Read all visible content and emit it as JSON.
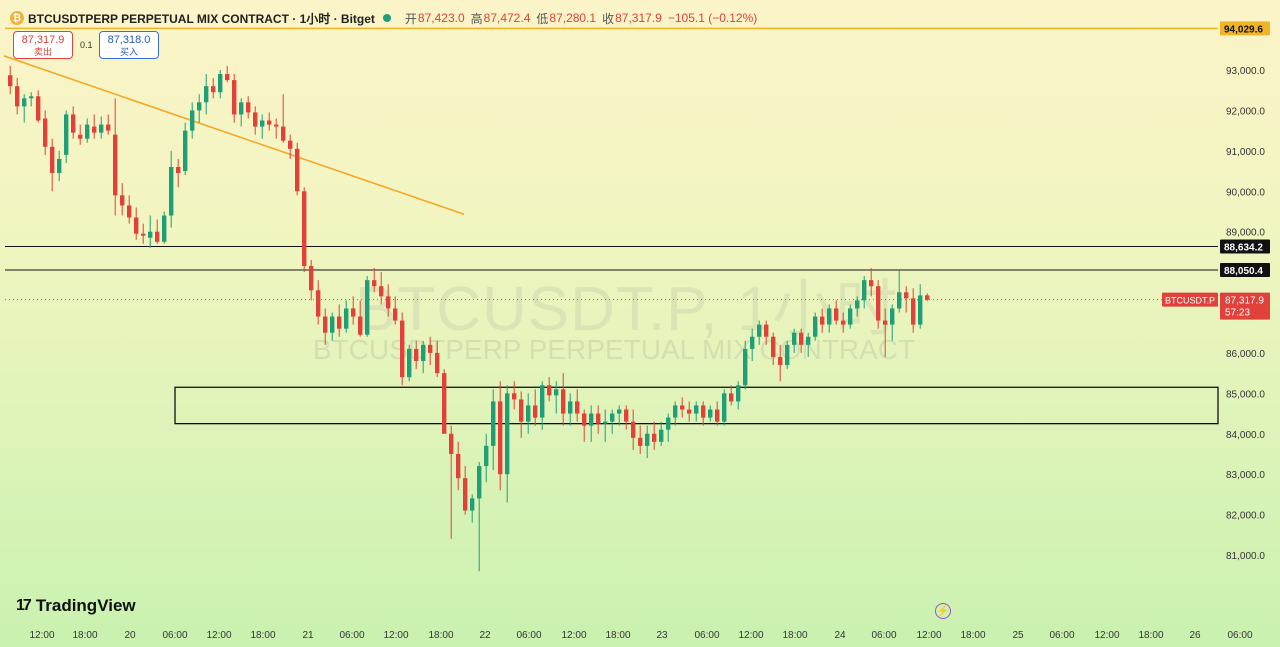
{
  "header": {
    "title": "BTCUSDTPERP PERPETUAL MIX CONTRACT · 1小时 · Bitget",
    "open_label": "开",
    "open": "87,423.0",
    "high_label": "高",
    "high": "87,472.4",
    "low_label": "低",
    "low": "87,280.1",
    "close_label": "收",
    "close": "87,317.9",
    "change": "−105.1 (−0.12%)"
  },
  "trade": {
    "sell_price": "87,317.9",
    "sell_label": "卖出",
    "spread": "0.1",
    "buy_price": "87,318.0",
    "buy_label": "买入"
  },
  "watermark": {
    "big": "BTCUSDT.P, 1小时",
    "small": "BTCUSDTPERP PERPETUAL MIX CONTRACT"
  },
  "branding": {
    "name": "TradingView"
  },
  "colors": {
    "up": "#1f9e78",
    "down": "#e0413a",
    "trendline": "#f5a623",
    "top_line": "#f0b429"
  },
  "chart_data": {
    "type": "candlestick",
    "symbol": "BTCUSDT.P",
    "interval": "1小时",
    "y_ticks": [
      93000,
      92000,
      91000,
      90000,
      89000,
      88000,
      87000,
      86000,
      85000,
      84000,
      83000,
      82000,
      81000
    ],
    "y_tick_labels": [
      "93,000.0",
      "92,000.0",
      "91,000.0",
      "90,000.0",
      "89,000.0",
      "88,000.0",
      "87,000.0",
      "86,000.0",
      "85,000.0",
      "84,000.0",
      "83,000.0",
      "82,000.0",
      "81,000.0"
    ],
    "ylim": [
      80000,
      94800
    ],
    "x_tick_labels": [
      "12:00",
      "18:00",
      "20",
      "06:00",
      "12:00",
      "18:00",
      "21",
      "06:00",
      "12:00",
      "18:00",
      "22",
      "06:00",
      "12:00",
      "18:00",
      "23",
      "06:00",
      "12:00",
      "18:00",
      "24",
      "06:00",
      "12:00",
      "18:00",
      "25",
      "06:00",
      "12:00",
      "18:00",
      "26",
      "06:00"
    ],
    "horizontal_levels": [
      {
        "price": 94029.6,
        "label": "94,029.6"
      },
      {
        "price": 88634.2,
        "label": "88,634.2"
      },
      {
        "price": 88050.4,
        "label": "88,050.4"
      }
    ],
    "last_price": {
      "price": 87317.9,
      "label": "87,317.9",
      "symbol_tag": "BTCUSDT.P",
      "countdown": "57:23"
    },
    "rectangle_zone": {
      "top": 85150,
      "bottom": 84250
    },
    "trendline": {
      "from": {
        "bar": 0,
        "price": 93350
      },
      "to": {
        "bar": 65,
        "price": 89430
      }
    },
    "candles": [
      [
        92870,
        93100,
        92400,
        92600
      ],
      [
        92600,
        92800,
        91900,
        92100
      ],
      [
        92100,
        92400,
        91700,
        92300
      ],
      [
        92300,
        92450,
        92100,
        92350
      ],
      [
        92350,
        92500,
        91700,
        91750
      ],
      [
        91800,
        92000,
        90900,
        91100
      ],
      [
        91100,
        91300,
        90000,
        90450
      ],
      [
        90450,
        91000,
        90250,
        90800
      ],
      [
        90900,
        92000,
        90700,
        91900
      ],
      [
        91900,
        92100,
        91300,
        91450
      ],
      [
        91400,
        91650,
        91150,
        91300
      ],
      [
        91300,
        91800,
        91200,
        91650
      ],
      [
        91600,
        91900,
        91300,
        91450
      ],
      [
        91450,
        91850,
        91300,
        91650
      ],
      [
        91650,
        91900,
        91400,
        91500
      ],
      [
        91400,
        92300,
        89400,
        89900
      ],
      [
        89900,
        90200,
        89400,
        89650
      ],
      [
        89650,
        89900,
        89200,
        89350
      ],
      [
        89350,
        89600,
        88800,
        88950
      ],
      [
        88950,
        89200,
        88700,
        88900
      ],
      [
        88850,
        89400,
        88600,
        89000
      ],
      [
        89000,
        89300,
        88700,
        88750
      ],
      [
        88750,
        89500,
        88700,
        89400
      ],
      [
        89400,
        91000,
        89100,
        90600
      ],
      [
        90600,
        90800,
        90100,
        90450
      ],
      [
        90500,
        91700,
        90400,
        91500
      ],
      [
        91500,
        92200,
        91300,
        92000
      ],
      [
        92000,
        92400,
        91700,
        92200
      ],
      [
        92200,
        92900,
        91900,
        92600
      ],
      [
        92600,
        92800,
        92300,
        92450
      ],
      [
        92450,
        93000,
        92300,
        92900
      ],
      [
        92900,
        93100,
        92700,
        92750
      ],
      [
        92750,
        92900,
        91700,
        91900
      ],
      [
        91900,
        92300,
        91600,
        92200
      ],
      [
        92200,
        92350,
        91800,
        91950
      ],
      [
        91950,
        92100,
        91400,
        91600
      ],
      [
        91600,
        91900,
        91300,
        91750
      ],
      [
        91750,
        91950,
        91500,
        91650
      ],
      [
        91650,
        91800,
        91300,
        91600
      ],
      [
        91600,
        92400,
        91200,
        91250
      ],
      [
        91250,
        91400,
        90800,
        91050
      ],
      [
        91050,
        91200,
        89900,
        90000
      ],
      [
        90000,
        90100,
        88000,
        88150
      ],
      [
        88150,
        88300,
        87300,
        87550
      ],
      [
        87550,
        87800,
        86700,
        86900
      ],
      [
        86900,
        87100,
        86200,
        86500
      ],
      [
        86500,
        87000,
        86300,
        86900
      ],
      [
        86900,
        87200,
        86400,
        86600
      ],
      [
        86600,
        87300,
        86500,
        87100
      ],
      [
        87100,
        87400,
        86700,
        86900
      ],
      [
        86900,
        87300,
        86400,
        86450
      ],
      [
        86450,
        87900,
        86400,
        87800
      ],
      [
        87800,
        88100,
        87500,
        87650
      ],
      [
        87650,
        88000,
        87200,
        87400
      ],
      [
        87400,
        87700,
        86900,
        87100
      ],
      [
        87100,
        87400,
        86700,
        86800
      ],
      [
        86800,
        87000,
        85200,
        85400
      ],
      [
        85400,
        86200,
        85300,
        86100
      ],
      [
        86100,
        86300,
        85600,
        85800
      ],
      [
        85800,
        86300,
        85500,
        86200
      ],
      [
        86200,
        86400,
        85700,
        86000
      ],
      [
        86000,
        86300,
        85400,
        85500
      ],
      [
        85500,
        85600,
        84000,
        84000
      ],
      [
        84000,
        84200,
        81400,
        83500
      ],
      [
        83500,
        83800,
        82600,
        82900
      ],
      [
        82900,
        83200,
        82000,
        82100
      ],
      [
        82100,
        82500,
        81800,
        82400
      ],
      [
        82400,
        83300,
        80600,
        83200
      ],
      [
        83200,
        84000,
        82800,
        83700
      ],
      [
        83700,
        85100,
        83100,
        84800
      ],
      [
        84800,
        85300,
        82600,
        83000
      ],
      [
        83000,
        85200,
        82300,
        85000
      ],
      [
        85000,
        85300,
        84600,
        84850
      ],
      [
        84850,
        85050,
        83900,
        84300
      ],
      [
        84300,
        85000,
        84000,
        84700
      ],
      [
        84700,
        85100,
        84200,
        84400
      ],
      [
        84400,
        85300,
        84100,
        85200
      ],
      [
        85200,
        85400,
        84800,
        84950
      ],
      [
        84950,
        85300,
        84500,
        85100
      ],
      [
        85100,
        85500,
        84200,
        84500
      ],
      [
        84500,
        85000,
        84200,
        84800
      ],
      [
        84800,
        85100,
        84300,
        84500
      ],
      [
        84500,
        84600,
        83800,
        84200
      ],
      [
        84200,
        84700,
        83800,
        84500
      ],
      [
        84500,
        84700,
        84000,
        84250
      ],
      [
        84250,
        84600,
        83800,
        84300
      ],
      [
        84300,
        84600,
        84000,
        84500
      ],
      [
        84500,
        84700,
        84200,
        84600
      ],
      [
        84600,
        84700,
        84100,
        84300
      ],
      [
        84300,
        84600,
        83600,
        83900
      ],
      [
        83900,
        84200,
        83500,
        83700
      ],
      [
        83700,
        84200,
        83400,
        84000
      ],
      [
        84000,
        84300,
        83600,
        83800
      ],
      [
        83800,
        84300,
        83700,
        84100
      ],
      [
        84100,
        84500,
        83800,
        84400
      ],
      [
        84400,
        84800,
        84200,
        84700
      ],
      [
        84700,
        84900,
        84400,
        84600
      ],
      [
        84600,
        84800,
        84300,
        84500
      ],
      [
        84500,
        84800,
        84300,
        84700
      ],
      [
        84700,
        84800,
        84200,
        84400
      ],
      [
        84400,
        84700,
        84300,
        84600
      ],
      [
        84600,
        84800,
        84200,
        84300
      ],
      [
        84300,
        85100,
        84200,
        85000
      ],
      [
        85000,
        85200,
        84700,
        84800
      ],
      [
        84800,
        85300,
        84600,
        85200
      ],
      [
        85200,
        86300,
        85100,
        86100
      ],
      [
        86100,
        86600,
        85800,
        86400
      ],
      [
        86400,
        86800,
        86200,
        86700
      ],
      [
        86700,
        86800,
        86200,
        86400
      ],
      [
        86400,
        86500,
        85700,
        85900
      ],
      [
        85900,
        86200,
        85300,
        85700
      ],
      [
        85700,
        86300,
        85600,
        86200
      ],
      [
        86200,
        86600,
        86000,
        86500
      ],
      [
        86500,
        86600,
        86000,
        86200
      ],
      [
        86200,
        86500,
        85900,
        86400
      ],
      [
        86400,
        87000,
        86300,
        86900
      ],
      [
        86900,
        87100,
        86500,
        86700
      ],
      [
        86700,
        87200,
        86500,
        87100
      ],
      [
        87100,
        87300,
        86700,
        86800
      ],
      [
        86800,
        87000,
        86500,
        86700
      ],
      [
        86700,
        87200,
        86600,
        87100
      ],
      [
        87100,
        87400,
        86900,
        87300
      ],
      [
        87300,
        87900,
        87100,
        87800
      ],
      [
        87800,
        88100,
        87400,
        87650
      ],
      [
        87650,
        87800,
        86600,
        86800
      ],
      [
        86800,
        87100,
        85900,
        86700
      ],
      [
        86700,
        87200,
        86300,
        87100
      ],
      [
        87100,
        88050,
        87000,
        87500
      ],
      [
        87500,
        87650,
        87000,
        87350
      ],
      [
        87350,
        87600,
        86500,
        86700
      ],
      [
        86700,
        87700,
        86600,
        87423
      ],
      [
        87423,
        87472,
        87280,
        87318
      ]
    ]
  }
}
